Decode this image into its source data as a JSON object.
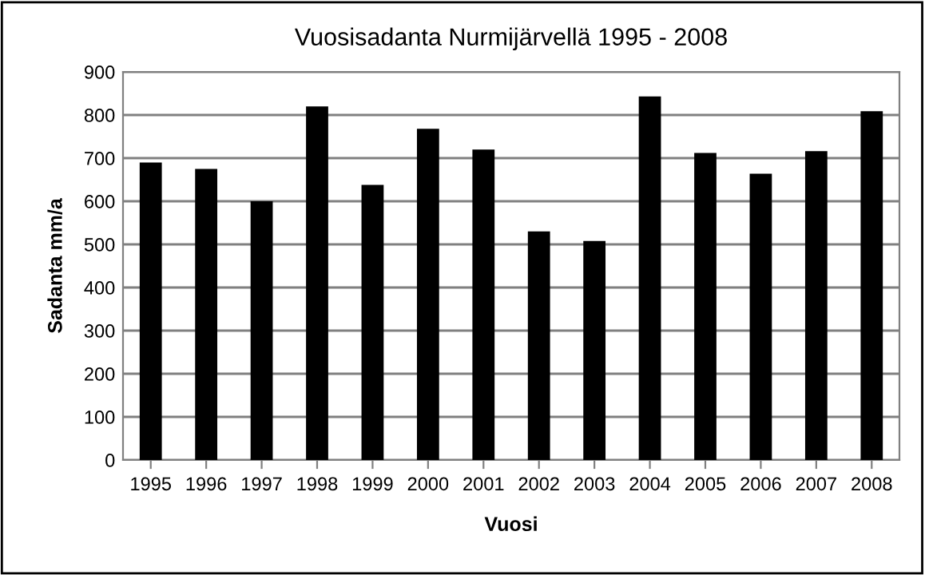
{
  "chart_data": {
    "type": "bar",
    "title": "Vuosisadanta Nurmijärvellä 1995 - 2008",
    "xlabel": "Vuosi",
    "ylabel": "Sadanta mm/a",
    "categories": [
      "1995",
      "1996",
      "1997",
      "1998",
      "1999",
      "2000",
      "2001",
      "2002",
      "2003",
      "2004",
      "2005",
      "2006",
      "2007",
      "2008"
    ],
    "values": [
      690,
      675,
      600,
      820,
      638,
      768,
      720,
      530,
      508,
      843,
      712,
      664,
      716,
      809
    ],
    "color": "#000000",
    "ylim": [
      0,
      900
    ],
    "yticks": [
      0,
      100,
      200,
      300,
      400,
      500,
      600,
      700,
      800,
      900
    ],
    "grid": "y",
    "legend": false
  }
}
